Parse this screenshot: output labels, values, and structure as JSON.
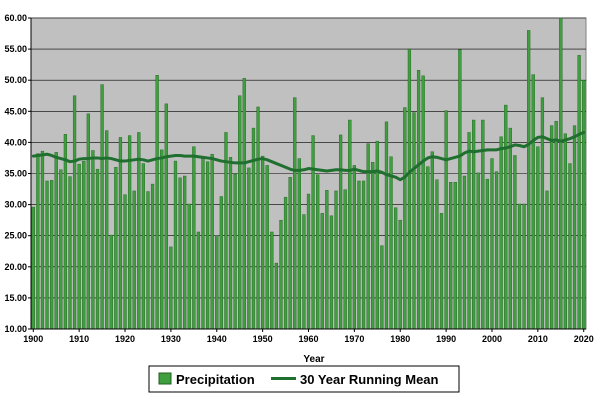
{
  "chart_data": {
    "type": "bar",
    "xlabel": "Year",
    "ylabel": "",
    "ylim": [
      10,
      60
    ],
    "y_ticks": [
      "10.00",
      "15.00",
      "20.00",
      "25.00",
      "30.00",
      "35.00",
      "40.00",
      "45.00",
      "50.00",
      "55.00",
      "60.00"
    ],
    "x_ticks": [
      "1900",
      "1910",
      "1920",
      "1930",
      "1940",
      "1950",
      "1960",
      "1970",
      "1980",
      "1990",
      "2000",
      "2010",
      "2020"
    ],
    "grid": "horizontal",
    "legend_position": "bottom",
    "colors": {
      "bar": "#3f9f3f",
      "bar_edge": "#1f5f1f",
      "mean_line": "#1f6f2f",
      "plot_bg": "#c0c0c0"
    },
    "x": [
      1900,
      1901,
      1902,
      1903,
      1904,
      1905,
      1906,
      1907,
      1908,
      1909,
      1910,
      1911,
      1912,
      1913,
      1914,
      1915,
      1916,
      1917,
      1918,
      1919,
      1920,
      1921,
      1922,
      1923,
      1924,
      1925,
      1926,
      1927,
      1928,
      1929,
      1930,
      1931,
      1932,
      1933,
      1934,
      1935,
      1936,
      1937,
      1938,
      1939,
      1940,
      1941,
      1942,
      1943,
      1944,
      1945,
      1946,
      1947,
      1948,
      1949,
      1950,
      1951,
      1952,
      1953,
      1954,
      1955,
      1956,
      1957,
      1958,
      1959,
      1960,
      1961,
      1962,
      1963,
      1964,
      1965,
      1966,
      1967,
      1968,
      1969,
      1970,
      1971,
      1972,
      1973,
      1974,
      1975,
      1976,
      1977,
      1978,
      1979,
      1980,
      1981,
      1982,
      1983,
      1984,
      1985,
      1986,
      1987,
      1988,
      1989,
      1990,
      1991,
      1992,
      1993,
      1994,
      1995,
      1996,
      1997,
      1998,
      1999,
      2000,
      2001,
      2002,
      2003,
      2004,
      2005,
      2006,
      2007,
      2008,
      2009,
      2010,
      2011,
      2012,
      2013,
      2014,
      2015,
      2016,
      2017,
      2018,
      2019,
      2020
    ],
    "series": [
      {
        "name": "Precipitation",
        "type": "bar",
        "values": [
          29.6,
          38.2,
          38.6,
          33.8,
          33.9,
          38.4,
          35.6,
          41.3,
          34.5,
          47.5,
          36.5,
          37.0,
          44.6,
          38.7,
          35.7,
          49.3,
          41.9,
          25.1,
          36.0,
          40.8,
          31.6,
          41.1,
          32.2,
          41.6,
          36.6,
          32.1,
          33.3,
          50.8,
          38.8,
          46.2,
          23.2,
          37.0,
          34.3,
          34.6,
          30.1,
          39.3,
          25.6,
          37.4,
          36.9,
          38.1,
          25.0,
          31.3,
          41.6,
          37.6,
          34.9,
          47.5,
          50.3,
          35.9,
          42.3,
          45.7,
          37.8,
          36.3,
          25.6,
          20.6,
          27.5,
          31.2,
          34.4,
          47.2,
          37.4,
          28.4,
          31.7,
          41.1,
          34.8,
          28.6,
          32.3,
          28.2,
          32.2,
          41.2,
          32.4,
          43.6,
          36.3,
          33.8,
          33.8,
          39.8,
          36.8,
          40.2,
          23.4,
          43.3,
          37.7,
          29.5,
          27.5,
          45.6,
          55.0,
          44.8,
          51.6,
          50.7,
          36.1,
          38.5,
          34.0,
          28.6,
          45.1,
          33.6,
          33.6,
          54.9,
          34.6,
          41.6,
          43.6,
          35.1,
          43.6,
          34.1,
          37.4,
          35.3,
          40.9,
          46.0,
          42.3,
          37.9,
          30.1,
          30.1,
          58.0,
          50.9,
          39.3,
          47.2,
          32.2,
          42.7,
          43.4,
          60.0,
          41.4,
          36.6,
          42.7,
          54.0,
          50.0
        ]
      },
      {
        "name": "30 Year Running Mean",
        "type": "line",
        "values": [
          37.8,
          37.9,
          38.0,
          38.1,
          37.9,
          37.6,
          37.4,
          37.2,
          36.9,
          37.0,
          37.3,
          37.4,
          37.4,
          37.5,
          37.5,
          37.4,
          37.5,
          37.4,
          37.2,
          37.0,
          37.0,
          37.1,
          37.2,
          37.3,
          37.2,
          37.0,
          37.2,
          37.4,
          37.5,
          37.7,
          37.8,
          37.9,
          37.9,
          37.8,
          37.8,
          37.8,
          37.7,
          37.6,
          37.5,
          37.4,
          37.2,
          37.0,
          36.9,
          36.8,
          36.7,
          36.7,
          36.7,
          36.9,
          37.1,
          37.3,
          37.4,
          37.2,
          36.9,
          36.6,
          36.3,
          36.0,
          35.7,
          35.5,
          35.5,
          35.6,
          35.8,
          35.7,
          35.6,
          35.5,
          35.4,
          35.5,
          35.6,
          35.6,
          35.5,
          35.5,
          35.7,
          35.5,
          35.3,
          35.3,
          35.3,
          35.4,
          35.2,
          34.8,
          34.6,
          34.4,
          34.0,
          34.4,
          35.2,
          35.8,
          36.4,
          37.0,
          37.5,
          37.7,
          37.6,
          37.4,
          37.2,
          37.4,
          37.6,
          37.8,
          38.3,
          38.6,
          38.5,
          38.6,
          38.7,
          38.8,
          38.8,
          38.8,
          39.0,
          39.1,
          39.3,
          39.6,
          39.5,
          39.3,
          39.7,
          40.3,
          40.8,
          40.9,
          40.6,
          40.3,
          40.4,
          40.2,
          40.4,
          40.6,
          40.9,
          41.3,
          41.6
        ]
      }
    ]
  }
}
